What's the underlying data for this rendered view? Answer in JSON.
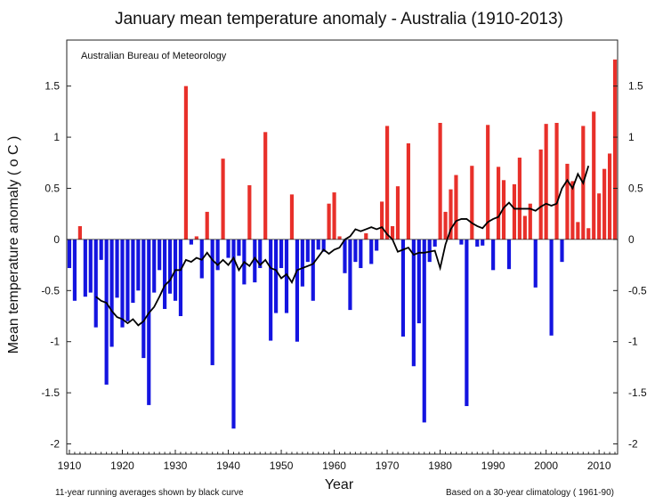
{
  "chart_data": {
    "type": "bar",
    "title": "January mean temperature anomaly - Australia (1910-2013)",
    "source": "Australian Bureau of Meteorology",
    "xlabel": "Year",
    "ylabel": "Mean temperature anomaly ( o C )",
    "footnote_left": "11-year running averages shown by black curve",
    "footnote_right": "Based on a 30-year climatology ( 1961-90)",
    "xlim": [
      1910,
      2013
    ],
    "ylim": [
      -2.1,
      1.95
    ],
    "grid": false,
    "x_ticks": [
      1910,
      1920,
      1930,
      1940,
      1950,
      1960,
      1970,
      1980,
      1990,
      2000,
      2010
    ],
    "x_tick_labels": [
      "1910",
      "1920",
      "1930",
      "1940",
      "1950",
      "1960",
      "1970",
      "1980",
      "1990",
      "2000",
      "2010"
    ],
    "y_ticks": [
      1.5,
      1,
      0.5,
      0,
      -0.5,
      -1,
      -1.5,
      -2
    ],
    "y_tick_labels": [
      "1.5",
      "1",
      "0.5",
      "0",
      "-0.5",
      "-1",
      "-1.5",
      "-2"
    ],
    "colors": {
      "positive": "#e8302a",
      "negative": "#1414e0",
      "curve": "#000000"
    },
    "years": [
      1910,
      1911,
      1912,
      1913,
      1914,
      1915,
      1916,
      1917,
      1918,
      1919,
      1920,
      1921,
      1922,
      1923,
      1924,
      1925,
      1926,
      1927,
      1928,
      1929,
      1930,
      1931,
      1932,
      1933,
      1934,
      1935,
      1936,
      1937,
      1938,
      1939,
      1940,
      1941,
      1942,
      1943,
      1944,
      1945,
      1946,
      1947,
      1948,
      1949,
      1950,
      1951,
      1952,
      1953,
      1954,
      1955,
      1956,
      1957,
      1958,
      1959,
      1960,
      1961,
      1962,
      1963,
      1964,
      1965,
      1966,
      1967,
      1968,
      1969,
      1970,
      1971,
      1972,
      1973,
      1974,
      1975,
      1976,
      1977,
      1978,
      1979,
      1980,
      1981,
      1982,
      1983,
      1984,
      1985,
      1986,
      1987,
      1988,
      1989,
      1990,
      1991,
      1992,
      1993,
      1994,
      1995,
      1996,
      1997,
      1998,
      1999,
      2000,
      2001,
      2002,
      2003,
      2004,
      2005,
      2006,
      2007,
      2008,
      2009,
      2010,
      2011,
      2012,
      2013
    ],
    "values": [
      -0.28,
      -0.6,
      0.13,
      -0.56,
      -0.52,
      -0.86,
      -0.2,
      -1.42,
      -1.05,
      -0.57,
      -0.86,
      -0.8,
      -0.62,
      -0.5,
      -1.16,
      -1.62,
      -0.52,
      -0.3,
      -0.68,
      -0.53,
      -0.6,
      -0.75,
      1.5,
      -0.05,
      0.03,
      -0.38,
      0.27,
      -1.23,
      -0.3,
      0.79,
      -0.18,
      -1.85,
      -0.16,
      -0.44,
      0.53,
      -0.42,
      -0.28,
      1.05,
      -0.99,
      -0.72,
      -0.28,
      -0.72,
      0.44,
      -1.0,
      -0.46,
      -0.22,
      -0.6,
      -0.1,
      -0.12,
      0.35,
      0.46,
      0.03,
      -0.33,
      -0.69,
      -0.22,
      -0.28,
      0.06,
      -0.24,
      -0.11,
      0.37,
      1.11,
      0.13,
      0.52,
      -0.95,
      0.94,
      -1.24,
      -0.82,
      -1.79,
      -0.22,
      -0.07,
      1.14,
      0.27,
      0.49,
      0.63,
      -0.05,
      -1.63,
      0.72,
      -0.07,
      -0.06,
      1.12,
      -0.3,
      0.71,
      0.58,
      -0.29,
      0.54,
      0.8,
      0.23,
      0.35,
      -0.47,
      0.88,
      1.13,
      -0.94,
      1.14,
      -0.22,
      0.74,
      0.57,
      0.17,
      1.11,
      0.11,
      1.25,
      0.45,
      0.69,
      0.84,
      1.76
    ],
    "running_mean": {
      "name": "11-year running averages",
      "years": [
        1915,
        1916,
        1917,
        1918,
        1919,
        1920,
        1921,
        1922,
        1923,
        1924,
        1925,
        1926,
        1927,
        1928,
        1929,
        1930,
        1931,
        1932,
        1933,
        1934,
        1935,
        1936,
        1937,
        1938,
        1939,
        1940,
        1941,
        1942,
        1943,
        1944,
        1945,
        1946,
        1947,
        1948,
        1949,
        1950,
        1951,
        1952,
        1953,
        1954,
        1955,
        1956,
        1957,
        1958,
        1959,
        1960,
        1961,
        1962,
        1963,
        1964,
        1965,
        1966,
        1967,
        1968,
        1969,
        1970,
        1971,
        1972,
        1973,
        1974,
        1975,
        1976,
        1977,
        1978,
        1979,
        1980,
        1981,
        1982,
        1983,
        1984,
        1985,
        1986,
        1987,
        1988,
        1989,
        1990,
        1991,
        1992,
        1993,
        1994,
        1995,
        1996,
        1997,
        1998,
        1999,
        2000,
        2001,
        2002,
        2003,
        2004,
        2005,
        2006,
        2007,
        2008
      ],
      "values": [
        -0.56,
        -0.6,
        -0.62,
        -0.7,
        -0.76,
        -0.78,
        -0.82,
        -0.78,
        -0.84,
        -0.8,
        -0.72,
        -0.66,
        -0.56,
        -0.45,
        -0.4,
        -0.3,
        -0.3,
        -0.2,
        -0.22,
        -0.18,
        -0.2,
        -0.13,
        -0.2,
        -0.25,
        -0.2,
        -0.25,
        -0.18,
        -0.3,
        -0.22,
        -0.26,
        -0.18,
        -0.25,
        -0.2,
        -0.28,
        -0.3,
        -0.38,
        -0.34,
        -0.42,
        -0.3,
        -0.28,
        -0.26,
        -0.24,
        -0.17,
        -0.1,
        -0.14,
        -0.1,
        -0.08,
        0.0,
        0.03,
        0.1,
        0.08,
        0.1,
        0.12,
        0.1,
        0.12,
        0.05,
        0.0,
        -0.12,
        -0.1,
        -0.08,
        -0.15,
        -0.13,
        -0.13,
        -0.12,
        -0.11,
        -0.28,
        -0.05,
        0.1,
        0.18,
        0.2,
        0.2,
        0.16,
        0.13,
        0.11,
        0.17,
        0.2,
        0.22,
        0.31,
        0.36,
        0.3,
        0.3,
        0.3,
        0.3,
        0.28,
        0.32,
        0.35,
        0.33,
        0.35,
        0.5,
        0.58,
        0.5,
        0.64,
        0.55,
        0.72
      ]
    }
  }
}
